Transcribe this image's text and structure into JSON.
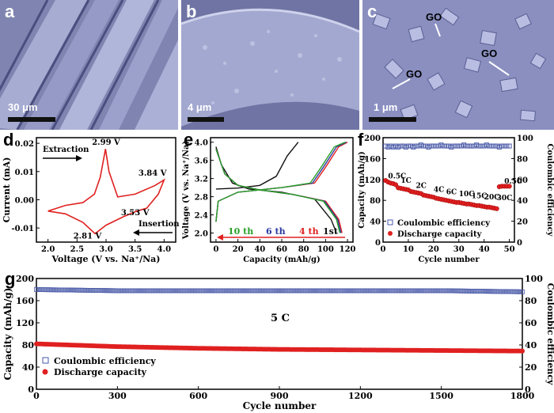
{
  "panels": {
    "a": {
      "label": "a",
      "scale": "30 μm"
    },
    "b": {
      "label": "b",
      "scale": "4 μm"
    },
    "c": {
      "label": "c",
      "scale": "1 μm",
      "annotations": [
        "GO",
        "GO",
        "GO"
      ]
    },
    "d": {
      "label": "d"
    },
    "e": {
      "label": "e"
    },
    "f": {
      "label": "f"
    },
    "g": {
      "label": "g"
    }
  },
  "colors": {
    "red": "#e02020",
    "blue": "#4a5aa8",
    "black": "#111111",
    "green": "#2aa02a"
  },
  "chart_data": [
    {
      "id": "d",
      "type": "line",
      "xlabel": "Voltage (V vs. Na⁺/Na)",
      "ylabel": "Current (mA)",
      "xlim": [
        1.8,
        4.2
      ],
      "ylim": [
        -0.015,
        0.022
      ],
      "xticks": [
        "2.0",
        "2.5",
        "3.0",
        "3.5",
        "4.0"
      ],
      "yticks": [
        "-0.01",
        "0.00",
        "0.01",
        "0.02"
      ],
      "series": [
        {
          "x": [
            2.0,
            2.3,
            2.6,
            2.8,
            2.9,
            2.99,
            3.05,
            3.2,
            3.5,
            3.84,
            4.0,
            3.9,
            3.7,
            3.53,
            3.3,
            3.0,
            2.81,
            2.6,
            2.3,
            2.0
          ],
          "y": [
            -0.004,
            -0.002,
            -0.001,
            0.002,
            0.008,
            0.018,
            0.01,
            0.001,
            0.002,
            0.005,
            0.007,
            0.002,
            -0.003,
            -0.004,
            -0.006,
            -0.009,
            -0.012,
            -0.008,
            -0.005,
            -0.004
          ]
        }
      ],
      "annotations": [
        {
          "text": "2.99 V",
          "x": 3.0,
          "y": 0.0195
        },
        {
          "text": "3.84 V",
          "x": 3.8,
          "y": 0.0085
        },
        {
          "text": "3.53 V",
          "x": 3.5,
          "y": -0.0055
        },
        {
          "text": "2.81 V",
          "x": 2.68,
          "y": -0.0138
        }
      ],
      "arrows": [
        {
          "text": "Extraction",
          "direction": "right"
        },
        {
          "text": "Insertion",
          "direction": "left"
        }
      ]
    },
    {
      "id": "e",
      "type": "line",
      "xlabel": "Capacity (mAh/g)",
      "ylabel": "Voltage (V vs. Na⁺/Na)",
      "xlim": [
        -5,
        125
      ],
      "ylim": [
        1.8,
        4.1
      ],
      "xticks": [
        "0",
        "20",
        "40",
        "60",
        "80",
        "100",
        "120"
      ],
      "yticks": [
        "2.0",
        "2.4",
        "2.8",
        "3.2",
        "3.6",
        "4.0"
      ],
      "series": [
        {
          "name": "1st",
          "color": "#111111",
          "charge": {
            "x": [
              0,
              20,
              40,
              55,
              65,
              75
            ],
            "y": [
              2.97,
              2.99,
              3.05,
              3.25,
              3.7,
              4.0
            ]
          },
          "discharge": {
            "x": [
              0,
              5,
              15,
              30,
              60,
              90,
              105,
              110
            ],
            "y": [
              3.9,
              3.5,
              3.1,
              2.97,
              2.9,
              2.75,
              2.3,
              2.0
            ]
          }
        },
        {
          "name": "4 th",
          "color": "#e02020",
          "charge": {
            "x": [
              0,
              2,
              20,
              60,
              90,
              100,
              112,
              120
            ],
            "y": [
              2.25,
              2.7,
              2.9,
              3.0,
              3.1,
              3.45,
              3.9,
              4.0
            ]
          },
          "discharge": {
            "x": [
              0,
              8,
              20,
              40,
              70,
              100,
              112,
              115
            ],
            "y": [
              3.85,
              3.3,
              3.05,
              2.95,
              2.85,
              2.7,
              2.3,
              2.0
            ]
          }
        },
        {
          "name": "6 th",
          "color": "#2a3aa0",
          "charge": {
            "x": [
              0,
              2,
              20,
              60,
              88,
              98,
              110,
              119
            ],
            "y": [
              2.25,
              2.7,
              2.9,
              3.0,
              3.1,
              3.45,
              3.9,
              4.0
            ]
          },
          "discharge": {
            "x": [
              0,
              8,
              20,
              40,
              70,
              99,
              111,
              114
            ],
            "y": [
              3.85,
              3.3,
              3.05,
              2.95,
              2.85,
              2.7,
              2.3,
              2.0
            ]
          }
        },
        {
          "name": "10 th",
          "color": "#2aa02a",
          "charge": {
            "x": [
              0,
              2,
              20,
              60,
              86,
              96,
              108,
              118
            ],
            "y": [
              2.25,
              2.7,
              2.9,
              3.0,
              3.1,
              3.45,
              3.9,
              4.0
            ]
          },
          "discharge": {
            "x": [
              0,
              8,
              20,
              40,
              70,
              98,
              110,
              113
            ],
            "y": [
              3.85,
              3.3,
              3.05,
              2.95,
              2.85,
              2.7,
              2.3,
              2.0
            ]
          }
        }
      ]
    },
    {
      "id": "f",
      "type": "scatter",
      "xlabel": "Cycle number",
      "ylabel": "Capacity (mAh/g)",
      "ylabel_right": "Coulombic efficiency",
      "xlim": [
        0,
        52
      ],
      "ylim": [
        0,
        200
      ],
      "ylim_right": [
        0,
        100
      ],
      "xticks": [
        "0",
        "10",
        "20",
        "30",
        "40",
        "50"
      ],
      "yticks": [
        "0",
        "40",
        "80",
        "120",
        "160",
        "200"
      ],
      "yticks_right": [
        "0",
        "20",
        "40",
        "60",
        "80",
        "100"
      ],
      "legend": [
        "Coulombic efficiency",
        "Discharge capacity"
      ],
      "rate_labels": [
        "0.5C",
        "1C",
        "2C",
        "4C",
        "6C",
        "10C",
        "15C",
        "20C",
        "30C",
        "0.5C"
      ],
      "discharge": [
        118,
        115,
        113,
        112,
        110,
        104,
        103,
        102,
        101,
        100,
        97,
        96,
        95,
        94,
        93,
        90,
        89,
        88,
        87,
        86,
        84,
        83,
        82,
        81,
        80,
        79,
        78,
        77,
        76,
        76,
        75,
        74,
        73,
        73,
        72,
        71,
        70,
        70,
        69,
        68,
        67,
        67,
        66,
        65,
        64,
        106,
        107,
        107,
        107,
        107
      ],
      "coulombic": [
        92,
        91,
        92,
        91,
        92,
        91,
        92,
        92,
        91,
        92,
        92,
        91,
        92,
        92,
        93,
        92,
        92,
        91,
        92,
        92,
        92,
        92,
        93,
        92,
        92,
        92,
        91,
        92,
        92,
        92,
        92,
        93,
        92,
        92,
        92,
        92,
        93,
        92,
        92,
        92,
        93,
        92,
        92,
        92,
        92,
        91,
        92,
        92,
        92,
        92
      ]
    },
    {
      "id": "g",
      "type": "scatter",
      "xlabel": "Cycle number",
      "ylabel": "Capacity (mAh/g)",
      "ylabel_right": "Coulombic efficiency",
      "xlim": [
        0,
        1800
      ],
      "ylim": [
        0,
        200
      ],
      "ylim_right": [
        0,
        100
      ],
      "xticks": [
        "0",
        "300",
        "600",
        "900",
        "1200",
        "1500",
        "1800"
      ],
      "yticks": [
        "0",
        "40",
        "80",
        "120",
        "160",
        "200"
      ],
      "yticks_right": [
        "0",
        "20",
        "40",
        "60",
        "80",
        "100"
      ],
      "legend": [
        "Coulombic efficiency",
        "Discharge capacity"
      ],
      "annotation": "5 C",
      "discharge_trend": {
        "x": [
          0,
          300,
          600,
          900,
          1200,
          1500,
          1800
        ],
        "y": [
          82,
          77,
          74,
          72,
          71,
          70,
          69
        ]
      },
      "coulombic_trend": {
        "x": [
          0,
          300,
          600,
          900,
          1200,
          1500,
          1800
        ],
        "y": [
          90,
          89,
          89,
          89,
          89,
          89,
          88
        ]
      }
    }
  ]
}
